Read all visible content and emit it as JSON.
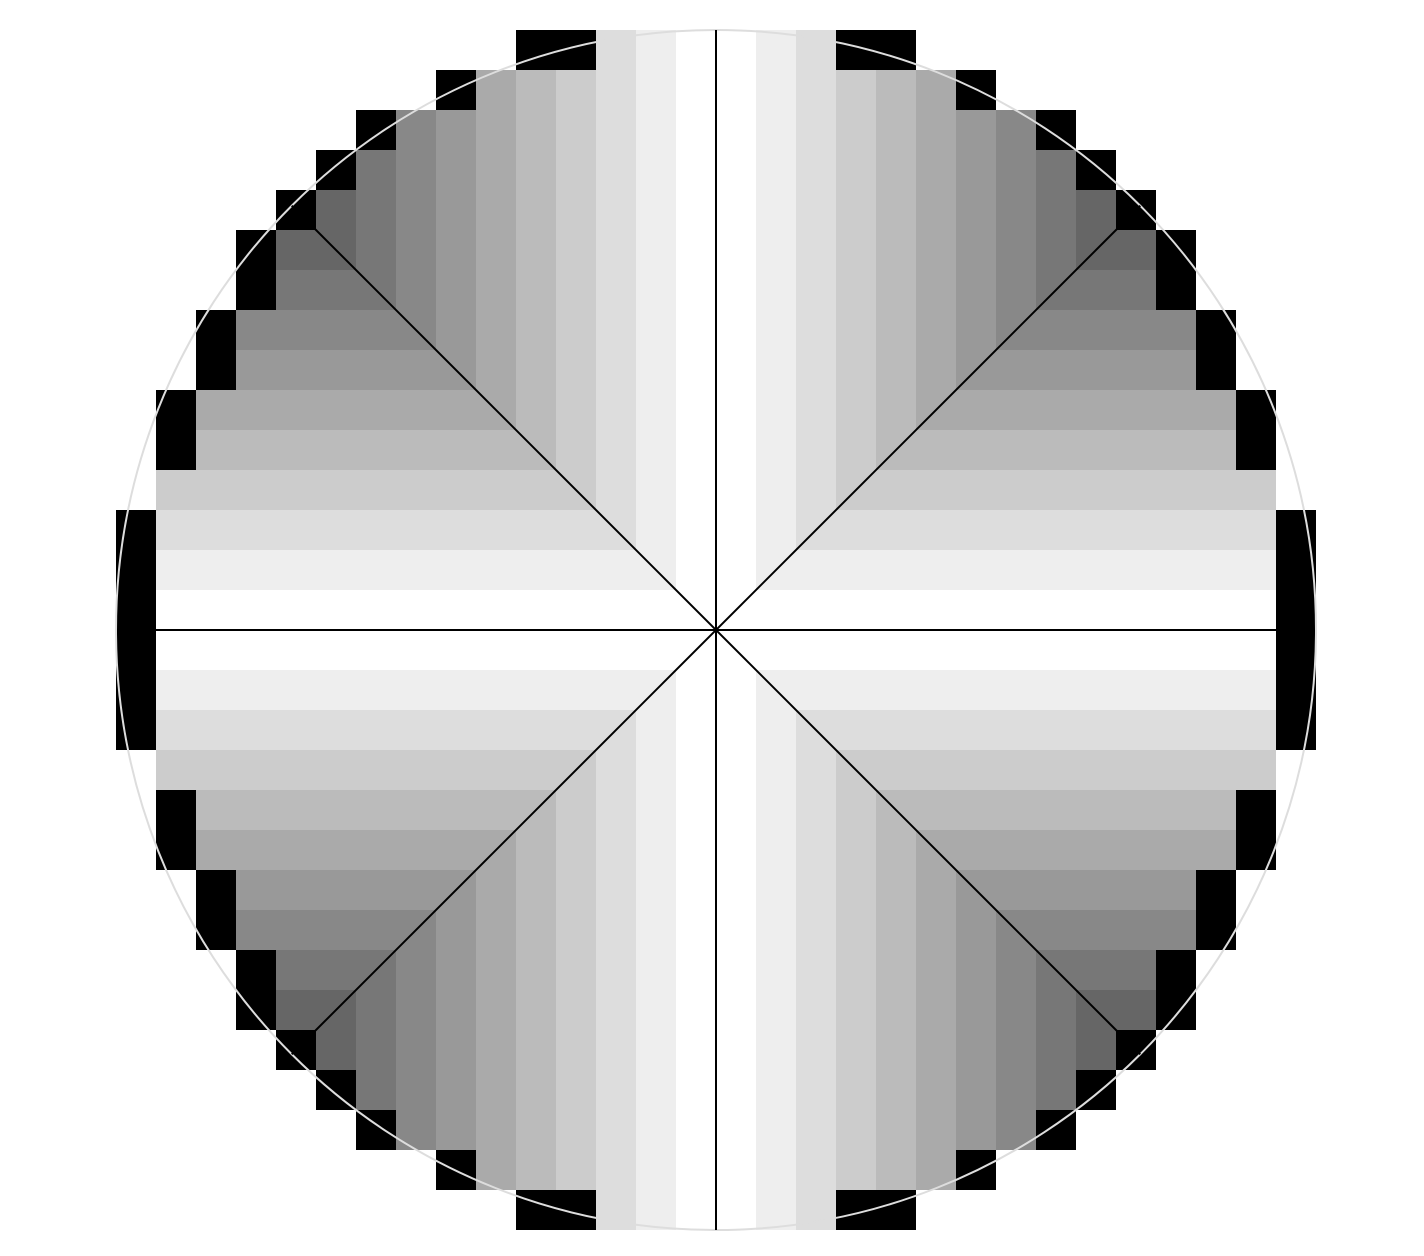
{
  "diagram": {
    "type": "pixelated-radial-grayscale-disc",
    "description_free": true,
    "grid": {
      "cells_per_side": 30,
      "ring_fill": "#000000",
      "background": "#ffffff"
    },
    "gray_levels": [
      "#ffffff",
      "#eeeeee",
      "#dddddd",
      "#cccccc",
      "#bbbbbb",
      "#aaaaaa",
      "#999999",
      "#888888",
      "#777777",
      "#666666",
      "#555555"
    ],
    "guide_circle_color": "#dddddd",
    "cross_lines_color": "#000000",
    "lines": [
      "horizontal",
      "vertical",
      "diagonal-down",
      "diagonal-up"
    ]
  }
}
